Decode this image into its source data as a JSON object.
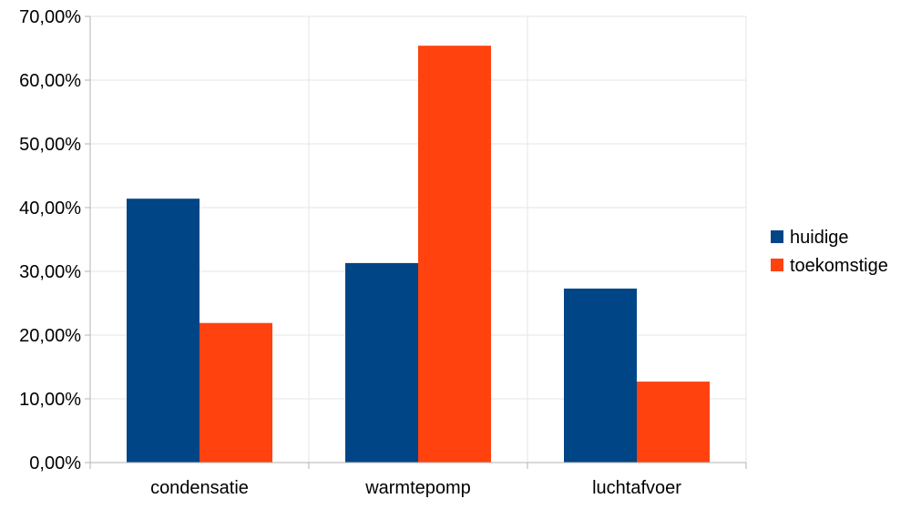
{
  "chart_data": {
    "type": "bar",
    "title": "",
    "xlabel": "",
    "ylabel": "",
    "categories": [
      "condensatie",
      "warmtepomp",
      "luchtafvoer"
    ],
    "series": [
      {
        "name": "huidige",
        "values": [
          41.4,
          31.3,
          27.3
        ],
        "color": "#004586"
      },
      {
        "name": "toekomstige",
        "values": [
          21.9,
          65.4,
          12.7
        ],
        "color": "#ff420e"
      }
    ],
    "ylim": [
      0,
      70
    ],
    "yticks": [
      0,
      10,
      20,
      30,
      40,
      50,
      60,
      70
    ],
    "ytick_labels": [
      "0,00%",
      "10,00%",
      "20,00%",
      "30,00%",
      "40,00%",
      "50,00%",
      "60,00%",
      "70,00%"
    ],
    "grid": true,
    "legend_position": "right"
  }
}
